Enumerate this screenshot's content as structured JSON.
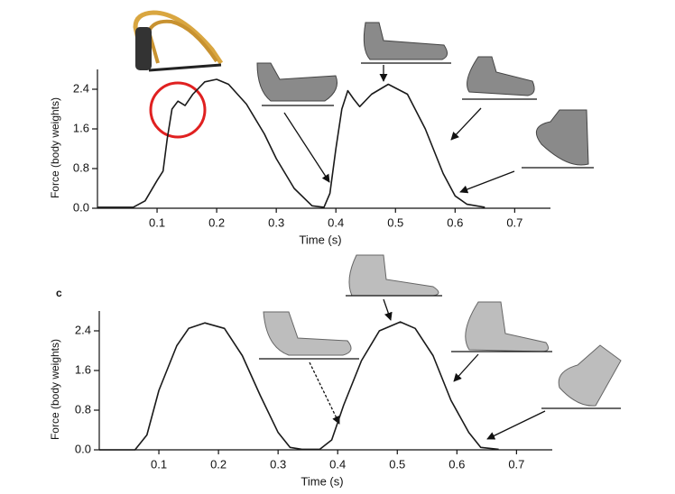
{
  "chart_data": [
    {
      "type": "line",
      "xlabel": "Time (s)",
      "ylabel": "Force (body weights)",
      "x": [
        0.0,
        0.06,
        0.08,
        0.1,
        0.11,
        0.117,
        0.125,
        0.135,
        0.147,
        0.16,
        0.18,
        0.2,
        0.22,
        0.25,
        0.28,
        0.3,
        0.33,
        0.36,
        0.38,
        0.39,
        0.4,
        0.41,
        0.42,
        0.43,
        0.44,
        0.46,
        0.488,
        0.52,
        0.55,
        0.58,
        0.6,
        0.62,
        0.65
      ],
      "values": [
        0.02,
        0.02,
        0.15,
        0.56,
        0.75,
        1.4,
        2.0,
        2.16,
        2.07,
        2.3,
        2.55,
        2.6,
        2.5,
        2.1,
        1.5,
        1.0,
        0.4,
        0.05,
        0.02,
        0.3,
        1.2,
        2.0,
        2.37,
        2.2,
        2.05,
        2.3,
        2.5,
        2.3,
        1.6,
        0.7,
        0.25,
        0.08,
        0.02
      ],
      "color": "#1a1a1a",
      "xlim": [
        0,
        0.76
      ],
      "ylim": [
        0,
        2.8
      ],
      "xticks": [
        0.1,
        0.2,
        0.3,
        0.4,
        0.5,
        0.6,
        0.7
      ],
      "yticks": [
        {
          "value": 0,
          "label": "0.0"
        },
        0.8,
        1.6,
        2.4
      ]
    },
    {
      "type": "line",
      "panel_label": "c",
      "xlabel": "Time (s)",
      "ylabel": "Force (body weights)",
      "x": [
        0.0,
        0.06,
        0.08,
        0.1,
        0.13,
        0.15,
        0.177,
        0.21,
        0.24,
        0.27,
        0.3,
        0.32,
        0.34,
        0.37,
        0.39,
        0.41,
        0.44,
        0.47,
        0.505,
        0.53,
        0.56,
        0.59,
        0.62,
        0.64,
        0.67
      ],
      "values": [
        0.0,
        0.0,
        0.3,
        1.2,
        2.1,
        2.45,
        2.56,
        2.45,
        1.9,
        1.1,
        0.35,
        0.05,
        0.01,
        0.01,
        0.2,
        0.9,
        1.8,
        2.4,
        2.58,
        2.45,
        1.9,
        1.0,
        0.35,
        0.05,
        0.01
      ],
      "color": "#1a1a1a",
      "xlim": [
        0,
        0.76
      ],
      "ylim": [
        0,
        2.8
      ],
      "xticks": [
        0.1,
        0.2,
        0.3,
        0.4,
        0.5,
        0.6,
        0.7
      ],
      "yticks": [
        {
          "value": 0,
          "label": "0.0"
        },
        0.8,
        1.6,
        2.4
      ]
    }
  ]
}
